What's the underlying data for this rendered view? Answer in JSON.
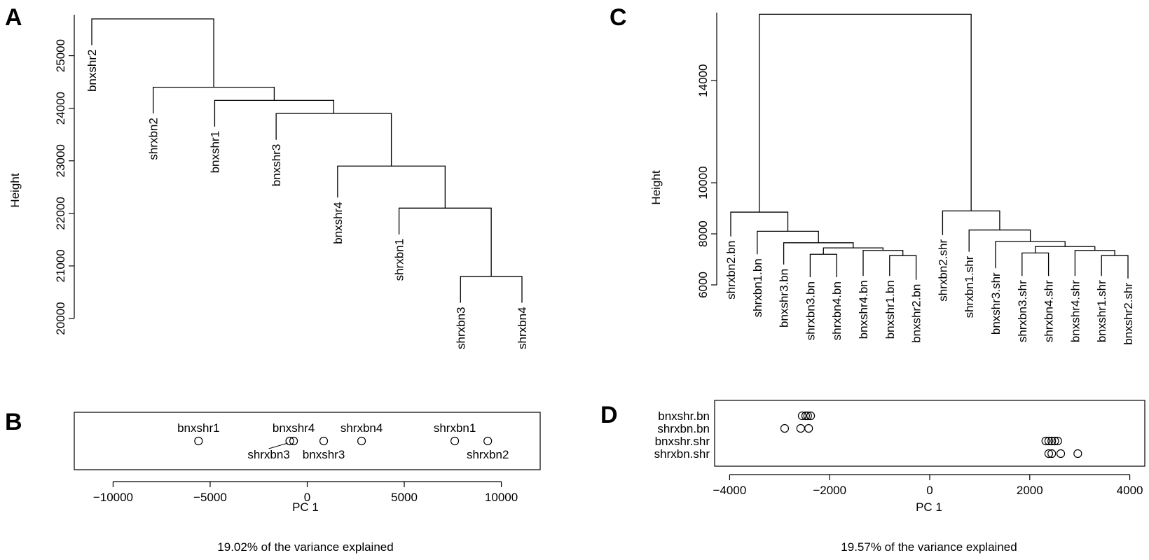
{
  "panels": [
    {
      "label": "A"
    },
    {
      "label": "B"
    },
    {
      "label": "C"
    },
    {
      "label": "D"
    }
  ],
  "chart_data": [
    {
      "type": "dendrogram",
      "panel": "A",
      "ylabel": "Height",
      "ylim": [
        20000,
        25700
      ],
      "yticks": [
        20000,
        21000,
        22000,
        23000,
        24000,
        25000
      ],
      "leaves": [
        "bnxshr2",
        "shrxbn2",
        "bnxshr1",
        "bnxshr3",
        "bnxshr4",
        "shrxbn1",
        "shrxbn3",
        "shrxbn4"
      ],
      "leaf_heights": [
        25200,
        23900,
        23650,
        23400,
        22300,
        21600,
        20300,
        20300
      ],
      "merges": [
        {
          "left": "shrxbn3",
          "right": "shrxbn4",
          "height": 20800
        },
        {
          "left": "shrxbn1",
          "right": "m1",
          "height": 22100
        },
        {
          "left": "bnxshr4",
          "right": "m2",
          "height": 22900
        },
        {
          "left": "bnxshr3",
          "right": "m3",
          "height": 23900
        },
        {
          "left": "bnxshr1",
          "right": "m4",
          "height": 24150
        },
        {
          "left": "shrxbn2",
          "right": "m5",
          "height": 24400
        },
        {
          "left": "bnxshr2",
          "right": "m6",
          "height": 25700
        }
      ]
    },
    {
      "type": "dotchart",
      "panel": "B",
      "xlabel": "PC 1",
      "subtitle": "19.02% of the variance explained",
      "xlim": [
        -12000,
        12000
      ],
      "xticks": [
        -10000,
        -5000,
        0,
        5000,
        10000
      ],
      "points": [
        {
          "label": "bnxshr1",
          "x": -5600,
          "label_pos": "above"
        },
        {
          "label": "shrxbn3",
          "x": -900,
          "label_pos": "below-left"
        },
        {
          "label": "bnxshr4",
          "x": -700,
          "label_pos": "above"
        },
        {
          "label": "bnxshr3",
          "x": 850,
          "label_pos": "below"
        },
        {
          "label": "shrxbn4",
          "x": 2800,
          "label_pos": "above"
        },
        {
          "label": "shrxbn1",
          "x": 7600,
          "label_pos": "above"
        },
        {
          "label": "shrxbn2",
          "x": 9300,
          "label_pos": "below"
        }
      ]
    },
    {
      "type": "dendrogram",
      "panel": "C",
      "ylabel": "Height",
      "ylim": [
        6000,
        16500
      ],
      "yticks": [
        6000,
        8000,
        10000,
        14000
      ],
      "leaves": [
        "shrxbn2.bn",
        "shrxbn1.bn",
        "bnxshr3.bn",
        "shrxbn3.bn",
        "shrxbn4.bn",
        "bnxshr4.bn",
        "bnxshr1.bn",
        "bnxshr2.bn",
        "shrxbn2.shr",
        "shrxbn1.shr",
        "bnxshr3.shr",
        "shrxbn3.shr",
        "shrxbn4.shr",
        "bnxshr4.shr",
        "bnxshr1.shr",
        "bnxshr2.shr"
      ],
      "leaf_heights": [
        7900,
        7200,
        6800,
        6300,
        6300,
        6350,
        6350,
        6200,
        7950,
        7300,
        6650,
        6350,
        6350,
        6350,
        6350,
        6250
      ],
      "merges": [
        {
          "left": "shrxbn3.bn",
          "right": "shrxbn4.bn",
          "height": 7200
        },
        {
          "left": "bnxshr1.bn",
          "right": "bnxshr2.bn",
          "height": 7150
        },
        {
          "left": "bnxshr4.bn",
          "right": "m2",
          "height": 7350
        },
        {
          "left": "m1",
          "right": "m3",
          "height": 7450
        },
        {
          "left": "bnxshr3.bn",
          "right": "m4",
          "height": 7650
        },
        {
          "left": "shrxbn1.bn",
          "right": "m5",
          "height": 8100
        },
        {
          "left": "shrxbn2.bn",
          "right": "m6",
          "height": 8850
        },
        {
          "left": "shrxbn3.shr",
          "right": "shrxbn4.shr",
          "height": 7250
        },
        {
          "left": "bnxshr1.shr",
          "right": "bnxshr2.shr",
          "height": 7150
        },
        {
          "left": "bnxshr4.shr",
          "right": "m9",
          "height": 7350
        },
        {
          "left": "m8",
          "right": "m10",
          "height": 7500
        },
        {
          "left": "bnxshr3.shr",
          "right": "m11",
          "height": 7700
        },
        {
          "left": "shrxbn1.shr",
          "right": "m12",
          "height": 8150
        },
        {
          "left": "shrxbn2.shr",
          "right": "m13",
          "height": 8900
        },
        {
          "left": "m7",
          "right": "m14",
          "height": 16600
        }
      ]
    },
    {
      "type": "dotchart",
      "panel": "D",
      "xlabel": "PC 1",
      "subtitle": "19.57% of the variance explained",
      "xlim": [
        -4300,
        4300
      ],
      "xticks": [
        -4000,
        -2000,
        0,
        2000,
        4000
      ],
      "rows": [
        {
          "label": "bnxshr.bn",
          "x": [
            -2550,
            -2480,
            -2440,
            -2380
          ]
        },
        {
          "label": "shrxbn.bn",
          "x": [
            -2900,
            -2580,
            -2420
          ]
        },
        {
          "label": "bnxshr.shr",
          "x": [
            2320,
            2380,
            2440,
            2500,
            2560
          ]
        },
        {
          "label": "shrxbn.shr",
          "x": [
            2380,
            2440,
            2620,
            2960
          ]
        }
      ]
    }
  ]
}
